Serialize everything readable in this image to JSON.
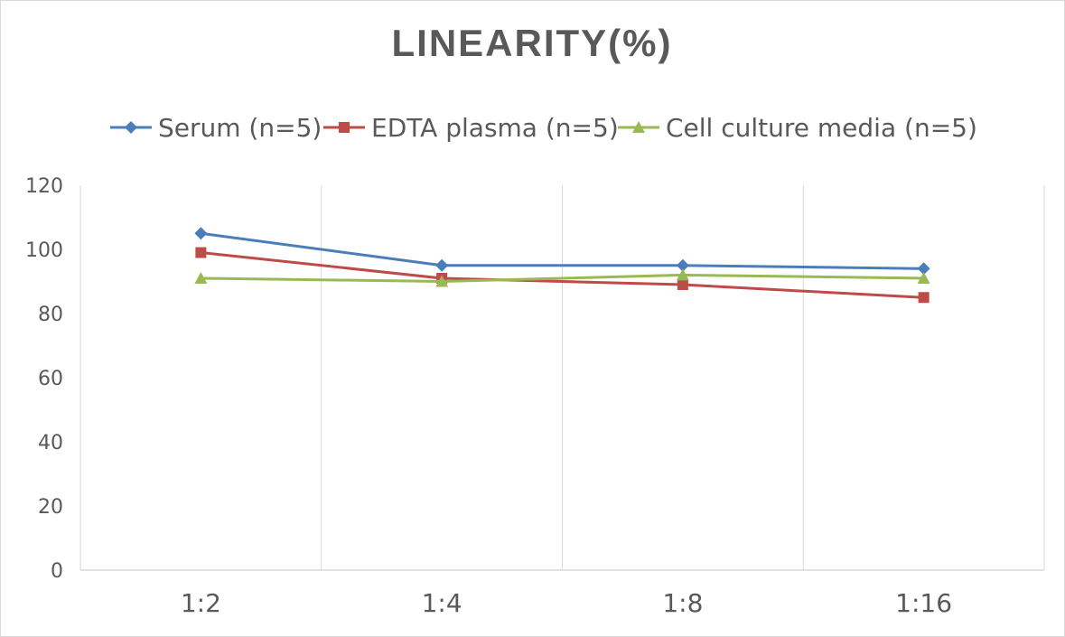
{
  "chart_data": {
    "type": "line",
    "title": "LINEARITY(%)",
    "xlabel": "",
    "ylabel": "",
    "categories": [
      "1:2",
      "1:4",
      "1:8",
      "1:16"
    ],
    "ylim": [
      0,
      120
    ],
    "yticks": [
      0,
      20,
      40,
      60,
      80,
      100,
      120
    ],
    "grid": "vertical",
    "legend_position": "top",
    "series": [
      {
        "name": "Serum (n=5)",
        "color": "#4a7ebb",
        "marker": "diamond",
        "values": [
          105,
          95,
          95,
          94
        ]
      },
      {
        "name": "EDTA plasma (n=5)",
        "color": "#be4b48",
        "marker": "square",
        "values": [
          99,
          91,
          89,
          85
        ]
      },
      {
        "name": "Cell culture media (n=5)",
        "color": "#98b954",
        "marker": "triangle",
        "values": [
          91,
          90,
          92,
          91
        ]
      }
    ]
  }
}
